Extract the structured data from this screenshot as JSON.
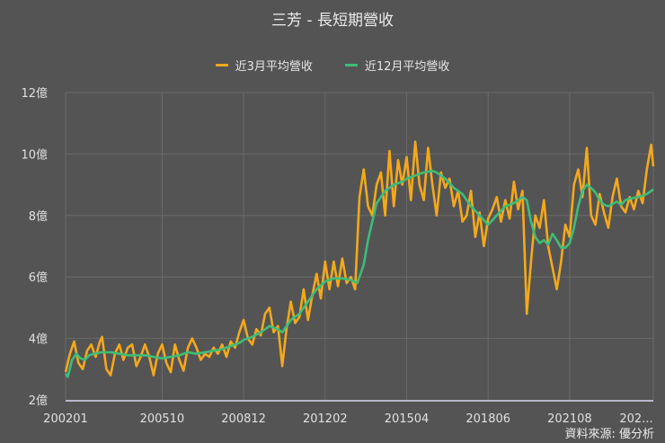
{
  "title": "三芳 - 長短期營收",
  "legend": [
    {
      "label": "近3月平均營收",
      "color": "#f5a81c"
    },
    {
      "label": "近12月平均營收",
      "color": "#3dbd78"
    }
  ],
  "source": "資料來源: 優分析",
  "chart_data": {
    "type": "line",
    "title": "三芳 - 長短期營收",
    "xlabel": "",
    "ylabel": "",
    "ylim": [
      2,
      12
    ],
    "yunit": "億",
    "yticks": [
      "2億",
      "4億",
      "6億",
      "8億",
      "10億",
      "12億"
    ],
    "xticks": [
      "200201",
      "200510",
      "200812",
      "201202",
      "201504",
      "201806",
      "202108",
      "202..."
    ],
    "grid": true,
    "legend_position": "top",
    "x_start": "200201",
    "x_end": "202411",
    "x_step": "month",
    "series": [
      {
        "name": "近3月平均營收",
        "color": "#f5a81c",
        "keypoints": [
          [
            "200201",
            2.9
          ],
          [
            "200203",
            3.5
          ],
          [
            "200205",
            3.9
          ],
          [
            "200207",
            3.2
          ],
          [
            "200209",
            3.0
          ],
          [
            "200211",
            3.6
          ],
          [
            "200301",
            3.8
          ],
          [
            "200303",
            3.4
          ],
          [
            "200305",
            3.9
          ],
          [
            "200306",
            4.05
          ],
          [
            "200308",
            3.0
          ],
          [
            "200310",
            2.8
          ],
          [
            "200312",
            3.5
          ],
          [
            "200402",
            3.8
          ],
          [
            "200404",
            3.3
          ],
          [
            "200406",
            3.7
          ],
          [
            "200408",
            3.8
          ],
          [
            "200410",
            3.1
          ],
          [
            "200412",
            3.4
          ],
          [
            "200502",
            3.8
          ],
          [
            "200504",
            3.4
          ],
          [
            "200506",
            2.8
          ],
          [
            "200508",
            3.5
          ],
          [
            "200510",
            3.8
          ],
          [
            "200512",
            3.2
          ],
          [
            "200602",
            2.9
          ],
          [
            "200604",
            3.8
          ],
          [
            "200606",
            3.3
          ],
          [
            "200608",
            2.95
          ],
          [
            "200610",
            3.7
          ],
          [
            "200612",
            4.0
          ],
          [
            "200702",
            3.7
          ],
          [
            "200704",
            3.3
          ],
          [
            "200706",
            3.5
          ],
          [
            "200708",
            3.4
          ],
          [
            "200710",
            3.7
          ],
          [
            "200712",
            3.5
          ],
          [
            "200802",
            3.8
          ],
          [
            "200804",
            3.4
          ],
          [
            "200806",
            3.9
          ],
          [
            "200808",
            3.7
          ],
          [
            "200810",
            4.2
          ],
          [
            "200812",
            4.6
          ],
          [
            "200902",
            4.0
          ],
          [
            "200904",
            3.8
          ],
          [
            "200906",
            4.3
          ],
          [
            "200908",
            4.1
          ],
          [
            "200910",
            4.8
          ],
          [
            "200912",
            5.0
          ],
          [
            "201002",
            4.2
          ],
          [
            "201004",
            4.4
          ],
          [
            "201006",
            3.1
          ],
          [
            "201008",
            4.3
          ],
          [
            "201010",
            5.2
          ],
          [
            "201012",
            4.5
          ],
          [
            "201102",
            4.7
          ],
          [
            "201104",
            5.6
          ],
          [
            "201106",
            4.6
          ],
          [
            "201108",
            5.4
          ],
          [
            "201110",
            6.1
          ],
          [
            "201112",
            5.3
          ],
          [
            "201202",
            6.5
          ],
          [
            "201204",
            5.6
          ],
          [
            "201206",
            6.5
          ],
          [
            "201208",
            5.7
          ],
          [
            "201210",
            6.6
          ],
          [
            "201212",
            5.8
          ],
          [
            "201302",
            6.0
          ],
          [
            "201304",
            5.6
          ],
          [
            "201306",
            8.6
          ],
          [
            "201308",
            9.5
          ],
          [
            "201310",
            8.3
          ],
          [
            "201312",
            8.0
          ],
          [
            "201402",
            9.0
          ],
          [
            "201404",
            9.4
          ],
          [
            "201406",
            8.0
          ],
          [
            "201408",
            10.1
          ],
          [
            "201410",
            8.3
          ],
          [
            "201412",
            9.8
          ],
          [
            "201502",
            9.0
          ],
          [
            "201504",
            9.9
          ],
          [
            "201506",
            8.5
          ],
          [
            "201508",
            10.4
          ],
          [
            "201510",
            9.0
          ],
          [
            "201512",
            8.5
          ],
          [
            "201602",
            10.2
          ],
          [
            "201604",
            9.0
          ],
          [
            "201606",
            8.0
          ],
          [
            "201608",
            9.4
          ],
          [
            "201610",
            8.9
          ],
          [
            "201612",
            9.2
          ],
          [
            "201702",
            8.3
          ],
          [
            "201704",
            8.8
          ],
          [
            "201706",
            7.8
          ],
          [
            "201708",
            8.0
          ],
          [
            "201710",
            8.8
          ],
          [
            "201712",
            7.3
          ],
          [
            "201802",
            8.1
          ],
          [
            "201804",
            7.0
          ],
          [
            "201806",
            7.9
          ],
          [
            "201808",
            8.2
          ],
          [
            "201810",
            8.6
          ],
          [
            "201812",
            7.8
          ],
          [
            "201902",
            8.5
          ],
          [
            "201904",
            7.9
          ],
          [
            "201906",
            9.1
          ],
          [
            "201908",
            8.2
          ],
          [
            "201910",
            8.8
          ],
          [
            "201912",
            4.8
          ],
          [
            "202002",
            6.5
          ],
          [
            "202004",
            8.0
          ],
          [
            "202006",
            7.6
          ],
          [
            "202008",
            8.5
          ],
          [
            "202010",
            7.0
          ],
          [
            "202012",
            6.3
          ],
          [
            "202102",
            5.6
          ],
          [
            "202104",
            6.5
          ],
          [
            "202106",
            7.7
          ],
          [
            "202108",
            7.3
          ],
          [
            "202110",
            9.0
          ],
          [
            "202112",
            9.5
          ],
          [
            "202202",
            8.6
          ],
          [
            "202204",
            10.2
          ],
          [
            "202206",
            8.0
          ],
          [
            "202208",
            7.7
          ],
          [
            "202210",
            8.7
          ],
          [
            "202212",
            8.1
          ],
          [
            "202302",
            7.6
          ],
          [
            "202304",
            8.6
          ],
          [
            "202306",
            9.2
          ],
          [
            "202308",
            8.3
          ],
          [
            "202310",
            8.1
          ],
          [
            "202312",
            8.6
          ],
          [
            "202402",
            8.2
          ],
          [
            "202404",
            8.8
          ],
          [
            "202406",
            8.4
          ],
          [
            "202408",
            9.5
          ],
          [
            "202410",
            10.3
          ],
          [
            "202411",
            9.6
          ]
        ]
      },
      {
        "name": "近12月平均營收",
        "color": "#3dbd78",
        "keypoints": [
          [
            "200201",
            2.85
          ],
          [
            "200202",
            2.75
          ],
          [
            "200204",
            3.3
          ],
          [
            "200206",
            3.5
          ],
          [
            "200208",
            3.35
          ],
          [
            "200210",
            3.3
          ],
          [
            "200212",
            3.45
          ],
          [
            "200302",
            3.5
          ],
          [
            "200306",
            3.55
          ],
          [
            "200310",
            3.55
          ],
          [
            "200402",
            3.5
          ],
          [
            "200406",
            3.45
          ],
          [
            "200410",
            3.45
          ],
          [
            "200502",
            3.45
          ],
          [
            "200506",
            3.4
          ],
          [
            "200510",
            3.35
          ],
          [
            "200602",
            3.4
          ],
          [
            "200606",
            3.45
          ],
          [
            "200610",
            3.55
          ],
          [
            "200702",
            3.5
          ],
          [
            "200706",
            3.55
          ],
          [
            "200710",
            3.6
          ],
          [
            "200802",
            3.65
          ],
          [
            "200806",
            3.75
          ],
          [
            "200810",
            3.85
          ],
          [
            "200812",
            3.95
          ],
          [
            "200904",
            4.05
          ],
          [
            "200908",
            4.2
          ],
          [
            "200912",
            4.4
          ],
          [
            "201004",
            4.3
          ],
          [
            "201006",
            4.2
          ],
          [
            "201010",
            4.6
          ],
          [
            "201102",
            4.8
          ],
          [
            "201106",
            5.2
          ],
          [
            "201110",
            5.6
          ],
          [
            "201202",
            5.85
          ],
          [
            "201206",
            5.95
          ],
          [
            "201210",
            5.95
          ],
          [
            "201302",
            5.9
          ],
          [
            "201305",
            5.8
          ],
          [
            "201308",
            6.4
          ],
          [
            "201310",
            7.2
          ],
          [
            "201312",
            7.8
          ],
          [
            "201402",
            8.4
          ],
          [
            "201406",
            8.8
          ],
          [
            "201410",
            9.0
          ],
          [
            "201502",
            9.1
          ],
          [
            "201504",
            9.2
          ],
          [
            "201508",
            9.3
          ],
          [
            "201512",
            9.4
          ],
          [
            "201604",
            9.45
          ],
          [
            "201606",
            9.4
          ],
          [
            "201610",
            9.2
          ],
          [
            "201702",
            8.9
          ],
          [
            "201706",
            8.7
          ],
          [
            "201710",
            8.3
          ],
          [
            "201802",
            8.0
          ],
          [
            "201806",
            7.7
          ],
          [
            "201810",
            8.0
          ],
          [
            "201902",
            8.3
          ],
          [
            "201906",
            8.4
          ],
          [
            "201910",
            8.6
          ],
          [
            "201912",
            8.5
          ],
          [
            "202002",
            7.8
          ],
          [
            "202004",
            7.3
          ],
          [
            "202006",
            7.1
          ],
          [
            "202008",
            7.2
          ],
          [
            "202010",
            7.05
          ],
          [
            "202012",
            7.4
          ],
          [
            "202102",
            7.2
          ],
          [
            "202104",
            6.95
          ],
          [
            "202106",
            6.95
          ],
          [
            "202108",
            7.1
          ],
          [
            "202110",
            7.6
          ],
          [
            "202112",
            8.3
          ],
          [
            "202202",
            8.8
          ],
          [
            "202204",
            9.0
          ],
          [
            "202206",
            8.9
          ],
          [
            "202208",
            8.75
          ],
          [
            "202210",
            8.5
          ],
          [
            "202212",
            8.35
          ],
          [
            "202302",
            8.3
          ],
          [
            "202306",
            8.45
          ],
          [
            "202308",
            8.35
          ],
          [
            "202310",
            8.5
          ],
          [
            "202312",
            8.55
          ],
          [
            "202404",
            8.6
          ],
          [
            "202408",
            8.7
          ],
          [
            "202411",
            8.85
          ]
        ]
      }
    ]
  }
}
